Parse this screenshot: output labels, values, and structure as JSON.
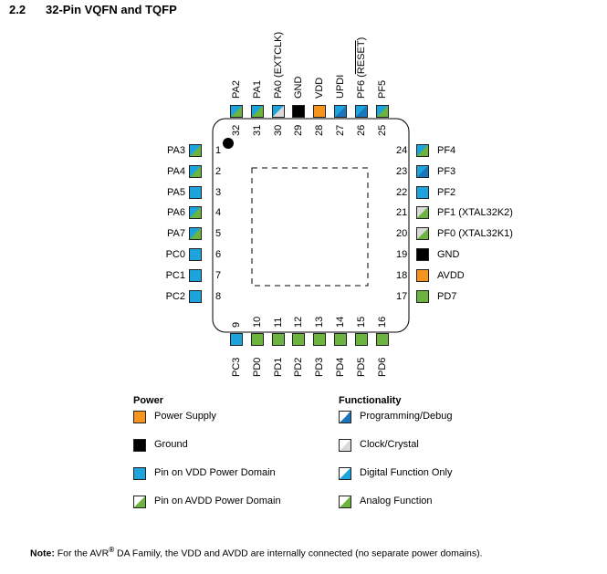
{
  "heading": {
    "number": "2.2",
    "title": "32-Pin VQFN and TQFP"
  },
  "colors": {
    "power_supply": "#f7941d",
    "ground": "#000000",
    "vdd_domain": "#1da4dd",
    "avdd_domain": "#6cb33f",
    "programming": "#1b75bb",
    "clock": "#d9d9d9",
    "digital": "#1da4dd",
    "analog": "#6cb33f"
  },
  "pins": {
    "left": [
      {
        "num": "1",
        "name": "PA3",
        "style": "vdd-analog"
      },
      {
        "num": "2",
        "name": "PA4",
        "style": "vdd-analog"
      },
      {
        "num": "3",
        "name": "PA5",
        "style": "vdd"
      },
      {
        "num": "4",
        "name": "PA6",
        "style": "vdd-analog"
      },
      {
        "num": "5",
        "name": "PA7",
        "style": "vdd-analog"
      },
      {
        "num": "6",
        "name": "PC0",
        "style": "vdd"
      },
      {
        "num": "7",
        "name": "PC1",
        "style": "vdd"
      },
      {
        "num": "8",
        "name": "PC2",
        "style": "vdd"
      }
    ],
    "bottom": [
      {
        "num": "9",
        "name": "PC3",
        "style": "vdd"
      },
      {
        "num": "10",
        "name": "PD0",
        "style": "avdd"
      },
      {
        "num": "11",
        "name": "PD1",
        "style": "avdd"
      },
      {
        "num": "12",
        "name": "PD2",
        "style": "avdd"
      },
      {
        "num": "13",
        "name": "PD3",
        "style": "avdd"
      },
      {
        "num": "14",
        "name": "PD4",
        "style": "avdd"
      },
      {
        "num": "15",
        "name": "PD5",
        "style": "avdd"
      },
      {
        "num": "16",
        "name": "PD6",
        "style": "avdd"
      }
    ],
    "right": [
      {
        "num": "24",
        "name": "PF4",
        "style": "vdd-analog"
      },
      {
        "num": "23",
        "name": "PF3",
        "style": "vdd-prog"
      },
      {
        "num": "22",
        "name": "PF2",
        "style": "vdd"
      },
      {
        "num": "21",
        "name": "PF1 (XTAL32K2)",
        "style": "clock-analog"
      },
      {
        "num": "20",
        "name": "PF0 (XTAL32K1)",
        "style": "clock-analog"
      },
      {
        "num": "19",
        "name": "GND",
        "style": "ground"
      },
      {
        "num": "18",
        "name": "AVDD",
        "style": "power"
      },
      {
        "num": "17",
        "name": "PD7",
        "style": "avdd"
      }
    ],
    "top": [
      {
        "num": "32",
        "name": "PA2",
        "style": "vdd-analog"
      },
      {
        "num": "31",
        "name": "PA1",
        "style": "vdd-analog"
      },
      {
        "num": "30",
        "name": "PA0 (EXTCLK)",
        "style": "vdd-clock"
      },
      {
        "num": "29",
        "name": "GND",
        "style": "ground"
      },
      {
        "num": "28",
        "name": "VDD",
        "style": "power"
      },
      {
        "num": "27",
        "name": "UPDI",
        "style": "vdd-prog"
      },
      {
        "num": "26",
        "name": "PF6 (RESET)",
        "style": "vdd-prog"
      },
      {
        "num": "25",
        "name": "PF5",
        "style": "vdd-analog"
      }
    ]
  },
  "legend": {
    "power_title": "Power",
    "power_items": [
      {
        "label": "Power Supply",
        "style": "power"
      },
      {
        "label": "Ground",
        "style": "ground"
      },
      {
        "label": "Pin on VDD Power Domain",
        "style": "vdd"
      },
      {
        "label": "Pin on AVDD Power Domain",
        "style": "avdd-white"
      }
    ],
    "func_title": "Functionality",
    "func_items": [
      {
        "label": "Programming/Debug",
        "style": "prog-white"
      },
      {
        "label": "Clock/Crystal",
        "style": "clock-white"
      },
      {
        "label": "Digital Function Only",
        "style": "vdd-white"
      },
      {
        "label": "Analog Function",
        "style": "analog-white"
      }
    ]
  },
  "note": {
    "prefix": "Note:",
    "text_a": " For the AVR",
    "reg": "®",
    "text_b": " DA Family, the VDD and AVDD are internally connected (no separate power domains)."
  }
}
